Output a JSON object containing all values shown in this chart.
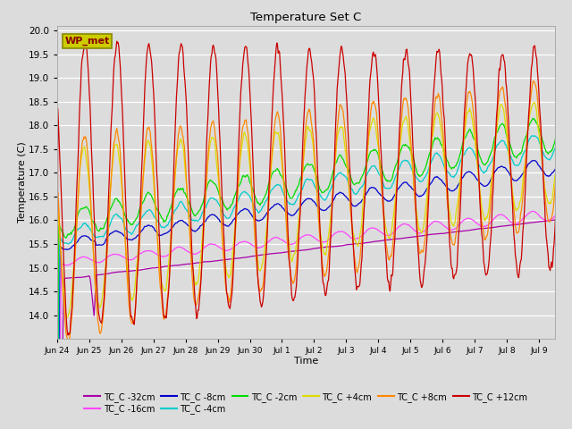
{
  "title": "Temperature Set C",
  "xlabel": "Time",
  "ylabel": "Temperature (C)",
  "ylim": [
    13.5,
    20.1
  ],
  "yticks": [
    14.0,
    14.5,
    15.0,
    15.5,
    16.0,
    16.5,
    17.0,
    17.5,
    18.0,
    18.5,
    19.0,
    19.5,
    20.0
  ],
  "background_color": "#dcdcdc",
  "plot_bg_color": "#dcdcdc",
  "series": [
    {
      "label": "TC_C -32cm",
      "color": "#aa00aa"
    },
    {
      "label": "TC_C -16cm",
      "color": "#ff44ff"
    },
    {
      "label": "TC_C -8cm",
      "color": "#0000cc"
    },
    {
      "label": "TC_C -4cm",
      "color": "#00cccc"
    },
    {
      "label": "TC_C -2cm",
      "color": "#00dd00"
    },
    {
      "label": "TC_C +4cm",
      "color": "#dddd00"
    },
    {
      "label": "TC_C +8cm",
      "color": "#ff8800"
    },
    {
      "label": "TC_C +12cm",
      "color": "#cc0000"
    }
  ],
  "wp_met_box_facecolor": "#cccc00",
  "wp_met_box_edgecolor": "#888800",
  "wp_met_text_color": "#880000",
  "xtick_labels": [
    "Jun 24",
    "Jun 25",
    "Jun 26",
    "Jun 27",
    "Jun 28",
    "Jun 29",
    "Jun 30",
    "Jul 1",
    "Jul 2",
    "Jul 3",
    "Jul 4",
    "Jul 5",
    "Jul 6",
    "Jul 7",
    "Jul 8",
    "Jul 9"
  ],
  "n_days": 16
}
